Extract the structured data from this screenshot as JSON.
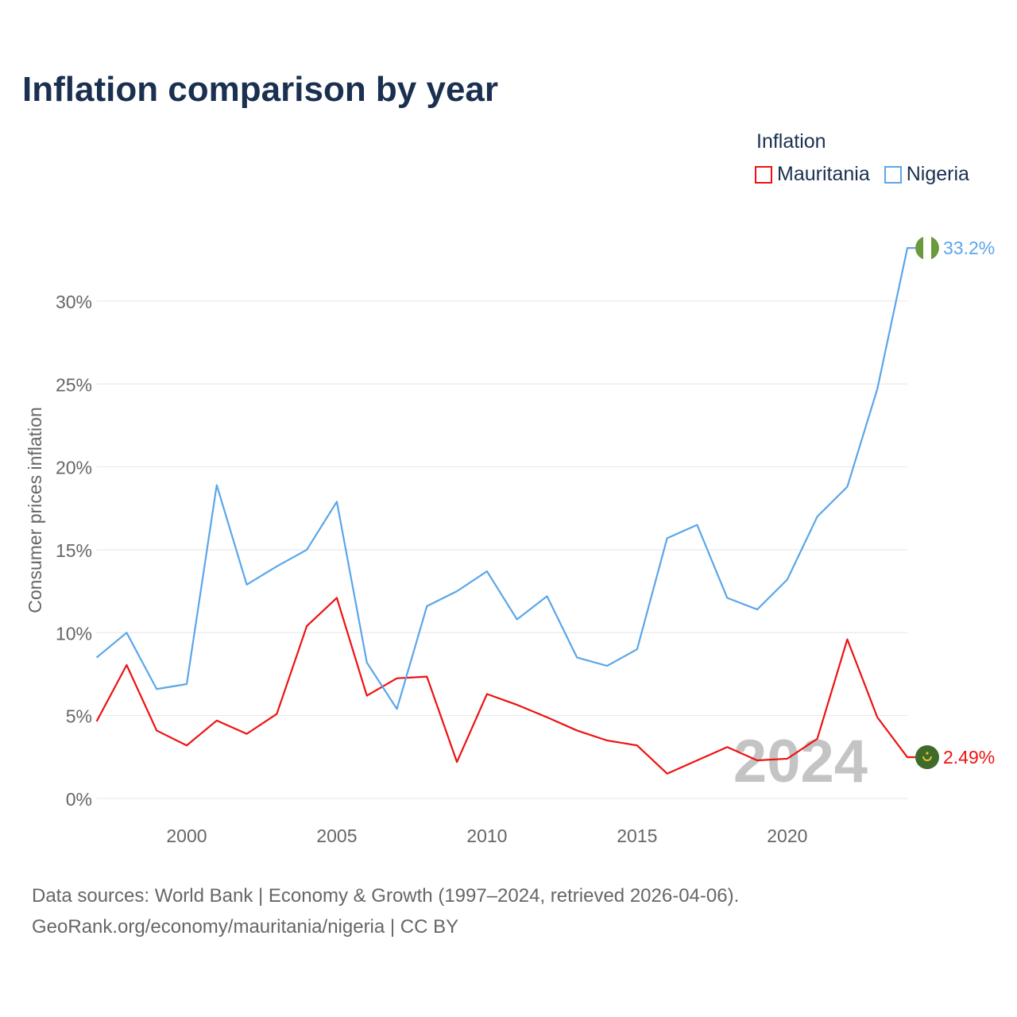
{
  "title": "Inflation comparison by year",
  "legend": {
    "title": "Inflation",
    "items": [
      {
        "label": "Mauritania",
        "color": "#ee1111"
      },
      {
        "label": "Nigeria",
        "color": "#5aa6ea"
      }
    ]
  },
  "watermark_year": "2024",
  "source_lines": [
    "Data sources: World Bank | Economy & Growth (1997–2024, retrieved 2026-04-06).",
    "GeoRank.org/economy/mauritania/nigeria | CC BY"
  ],
  "chart_data": {
    "type": "line",
    "title": "Inflation comparison by year",
    "xlabel": "",
    "ylabel": "Consumer prices inflation",
    "xlim": [
      1997,
      2024
    ],
    "ylim": [
      0,
      33.2
    ],
    "xticks": [
      2000,
      2005,
      2010,
      2015,
      2020
    ],
    "yticks": [
      0,
      5,
      10,
      15,
      20,
      25,
      30
    ],
    "ytick_labels": [
      "0%",
      "5%",
      "10%",
      "15%",
      "20%",
      "25%",
      "30%"
    ],
    "grid": true,
    "legend_position": "top-right",
    "x": [
      1997,
      1998,
      1999,
      2000,
      2001,
      2002,
      2003,
      2004,
      2005,
      2006,
      2007,
      2008,
      2009,
      2010,
      2011,
      2012,
      2013,
      2014,
      2015,
      2016,
      2017,
      2018,
      2019,
      2020,
      2021,
      2022,
      2023,
      2024
    ],
    "series": [
      {
        "name": "Mauritania",
        "color": "#ee1111",
        "end_label": "2.49%",
        "values": [
          4.65,
          8.05,
          4.1,
          3.2,
          4.7,
          3.9,
          5.1,
          10.4,
          12.1,
          6.2,
          7.25,
          7.35,
          2.2,
          6.3,
          5.65,
          4.9,
          4.1,
          3.5,
          3.2,
          1.5,
          2.3,
          3.1,
          2.3,
          2.4,
          3.6,
          9.6,
          4.9,
          2.49
        ]
      },
      {
        "name": "Nigeria",
        "color": "#5aa6ea",
        "end_label": "33.2%",
        "values": [
          8.5,
          10.0,
          6.6,
          6.9,
          18.9,
          12.9,
          14.0,
          15.0,
          17.9,
          8.2,
          5.4,
          11.6,
          12.5,
          13.7,
          10.8,
          12.2,
          8.5,
          8.0,
          9.0,
          15.7,
          16.5,
          12.1,
          11.4,
          13.2,
          17.0,
          18.8,
          24.7,
          33.2
        ]
      }
    ]
  }
}
